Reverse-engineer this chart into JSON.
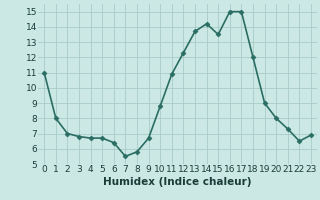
{
  "x": [
    0,
    1,
    2,
    3,
    4,
    5,
    6,
    7,
    8,
    9,
    10,
    11,
    12,
    13,
    14,
    15,
    16,
    17,
    18,
    19,
    20,
    21,
    22,
    23
  ],
  "y": [
    11.0,
    8.0,
    7.0,
    6.8,
    6.7,
    6.7,
    6.4,
    5.5,
    5.8,
    6.7,
    8.8,
    10.9,
    12.3,
    13.7,
    14.2,
    13.5,
    15.0,
    15.0,
    12.0,
    9.0,
    8.0,
    7.3,
    6.5,
    6.9
  ],
  "line_color": "#2a6e63",
  "marker": "D",
  "marker_size": 2.5,
  "bg_color": "#cce8e4",
  "grid_color": "#a8ccc8",
  "xlabel": "Humidex (Indice chaleur)",
  "xlim": [
    -0.5,
    23.5
  ],
  "ylim": [
    5,
    15.5
  ],
  "yticks": [
    5,
    6,
    7,
    8,
    9,
    10,
    11,
    12,
    13,
    14,
    15
  ],
  "xticks": [
    0,
    1,
    2,
    3,
    4,
    5,
    6,
    7,
    8,
    9,
    10,
    11,
    12,
    13,
    14,
    15,
    16,
    17,
    18,
    19,
    20,
    21,
    22,
    23
  ],
  "xlabel_fontsize": 7.5,
  "tick_fontsize": 6.5,
  "line_width": 1.2
}
